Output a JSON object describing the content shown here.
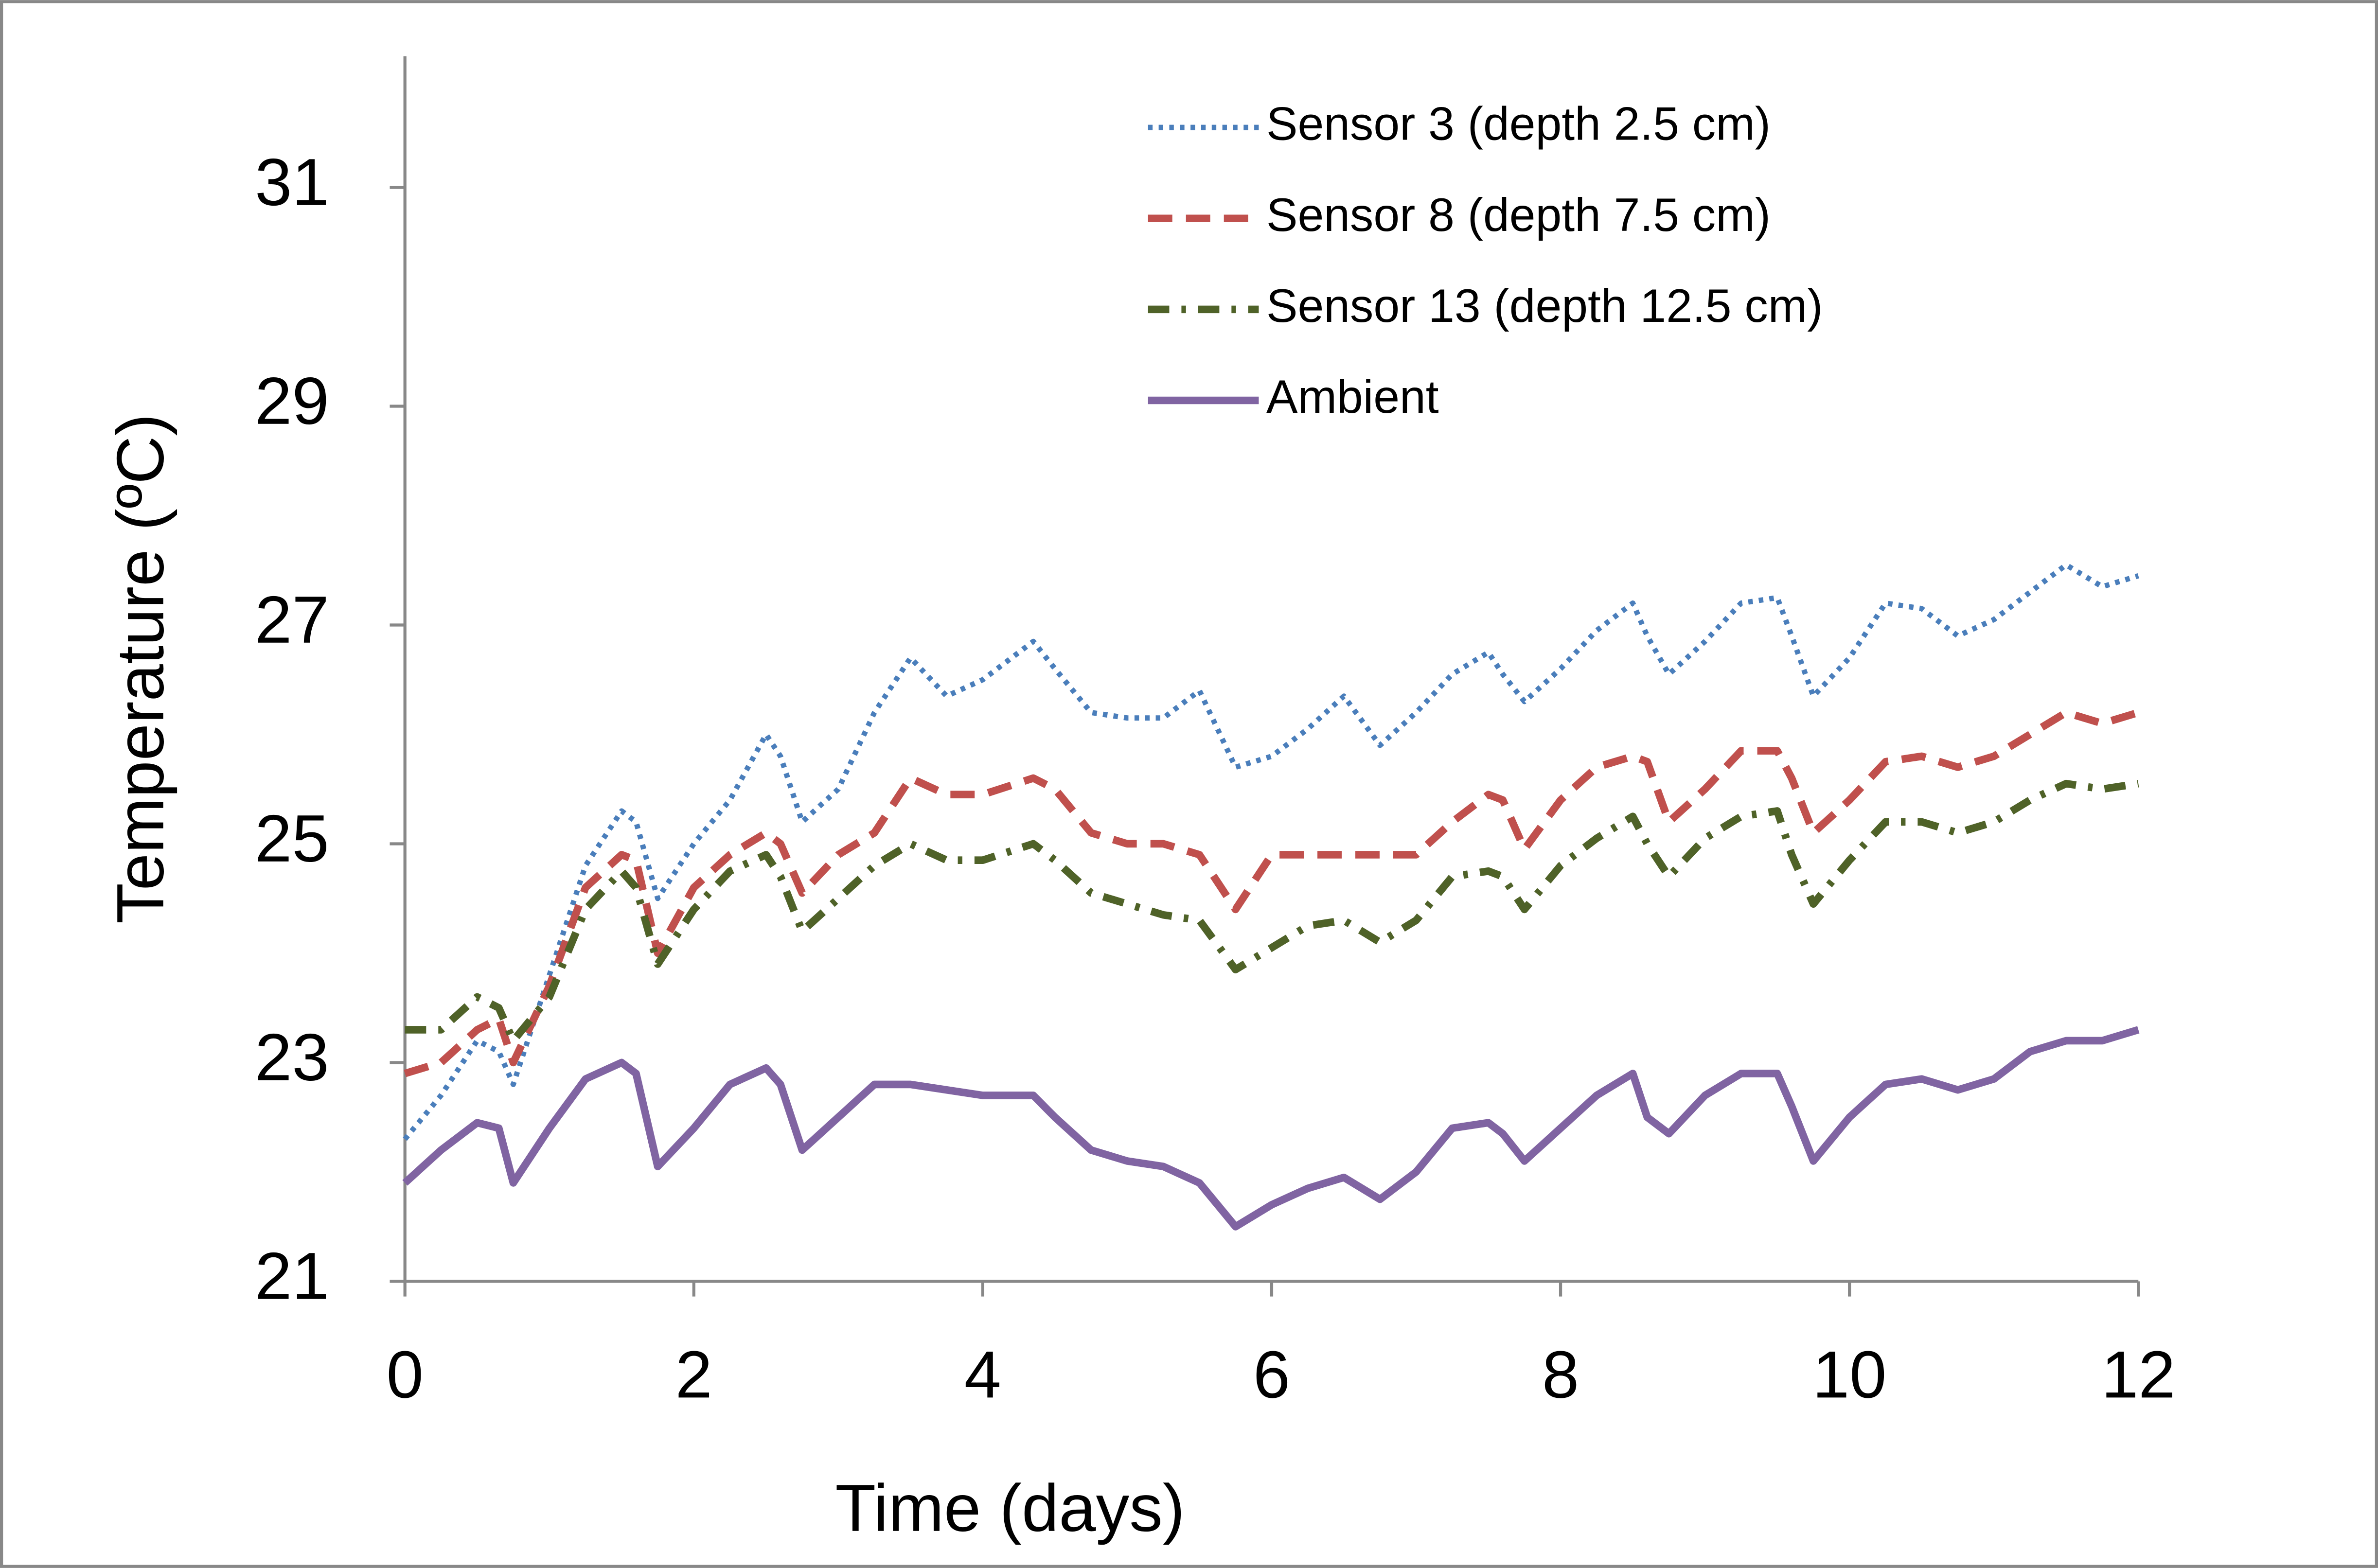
{
  "chart_data": {
    "type": "line",
    "xlabel": "Time (days)",
    "ylabel": "Temperature (ºC)",
    "xlim": [
      0,
      12
    ],
    "xticks": [
      0,
      2,
      4,
      6,
      8,
      10,
      12
    ],
    "ylim": [
      21,
      32.2
    ],
    "yticks": [
      21,
      23,
      25,
      27,
      29,
      31
    ],
    "legend": "top-right",
    "x": [
      0,
      0.25,
      0.5,
      0.65,
      0.75,
      1,
      1.25,
      1.5,
      1.6,
      1.75,
      2,
      2.25,
      2.5,
      2.6,
      2.75,
      3,
      3.25,
      3.5,
      3.75,
      4,
      4.35,
      4.5,
      4.75,
      5,
      5.25,
      5.5,
      5.75,
      6,
      6.25,
      6.5,
      6.75,
      7,
      7.25,
      7.5,
      7.6,
      7.75,
      8,
      8.25,
      8.5,
      8.6,
      8.75,
      9,
      9.25,
      9.5,
      9.6,
      9.75,
      10,
      10.25,
      10.5,
      10.75,
      11,
      11.25,
      11.5,
      11.75,
      12
    ],
    "series": [
      {
        "name": "Sensor 3 (depth 2.5 cm)",
        "color": "#4a7ebb",
        "style": "dotted",
        "values": [
          22.3,
          22.7,
          23.2,
          23.1,
          22.8,
          23.8,
          24.8,
          25.3,
          25.2,
          24.5,
          25.0,
          25.4,
          26.0,
          25.8,
          25.2,
          25.5,
          26.2,
          26.7,
          26.35,
          26.5,
          26.85,
          26.6,
          26.2,
          26.15,
          26.15,
          26.4,
          25.7,
          25.8,
          26.05,
          26.35,
          25.9,
          26.2,
          26.55,
          26.75,
          26.55,
          26.3,
          26.6,
          26.95,
          27.2,
          26.9,
          26.55,
          26.85,
          27.2,
          27.25,
          26.9,
          26.35,
          26.7,
          27.2,
          27.15,
          26.9,
          27.05,
          27.3,
          27.55,
          27.35,
          27.45
        ]
      },
      {
        "name": "Sensor 8 (depth 7.5 cm)",
        "color": "#c0504d",
        "style": "dashed",
        "values": [
          22.9,
          23.0,
          23.3,
          23.4,
          23.0,
          23.7,
          24.6,
          24.9,
          24.85,
          24.0,
          24.6,
          24.9,
          25.1,
          25.0,
          24.55,
          24.9,
          25.1,
          25.6,
          25.45,
          25.45,
          25.6,
          25.5,
          25.1,
          25.0,
          25.0,
          24.9,
          24.4,
          24.9,
          24.9,
          24.9,
          24.9,
          24.9,
          25.2,
          25.45,
          25.4,
          24.95,
          25.4,
          25.7,
          25.8,
          25.75,
          25.2,
          25.5,
          25.85,
          25.85,
          25.6,
          25.1,
          25.4,
          25.75,
          25.8,
          25.7,
          25.8,
          26.0,
          26.2,
          26.1,
          26.2
        ]
      },
      {
        "name": "Sensor 13 (depth 12.5 cm)",
        "color": "#4f6228",
        "style": "dashdot",
        "values": [
          23.3,
          23.3,
          23.6,
          23.5,
          23.2,
          23.6,
          24.4,
          24.75,
          24.6,
          23.9,
          24.4,
          24.75,
          24.9,
          24.7,
          24.2,
          24.5,
          24.8,
          25.0,
          24.85,
          24.85,
          25.0,
          24.85,
          24.55,
          24.45,
          24.35,
          24.3,
          23.85,
          24.05,
          24.25,
          24.3,
          24.1,
          24.3,
          24.7,
          24.75,
          24.7,
          24.4,
          24.8,
          25.05,
          25.25,
          25.0,
          24.7,
          25.05,
          25.25,
          25.3,
          24.9,
          24.45,
          24.85,
          25.2,
          25.2,
          25.1,
          25.2,
          25.4,
          25.55,
          25.5,
          25.55
        ]
      },
      {
        "name": "Ambient",
        "color": "#8064a2",
        "style": "solid",
        "values": [
          21.9,
          22.2,
          22.45,
          22.4,
          21.9,
          22.4,
          22.85,
          23.0,
          22.9,
          22.05,
          22.4,
          22.8,
          22.95,
          22.8,
          22.2,
          22.5,
          22.8,
          22.8,
          22.75,
          22.7,
          22.7,
          22.5,
          22.2,
          22.1,
          22.05,
          21.9,
          21.5,
          21.7,
          21.85,
          21.95,
          21.75,
          22.0,
          22.4,
          22.45,
          22.35,
          22.1,
          22.4,
          22.7,
          22.9,
          22.5,
          22.35,
          22.7,
          22.9,
          22.9,
          22.6,
          22.1,
          22.5,
          22.8,
          22.85,
          22.75,
          22.85,
          23.1,
          23.2,
          23.2,
          23.3
        ]
      }
    ]
  }
}
